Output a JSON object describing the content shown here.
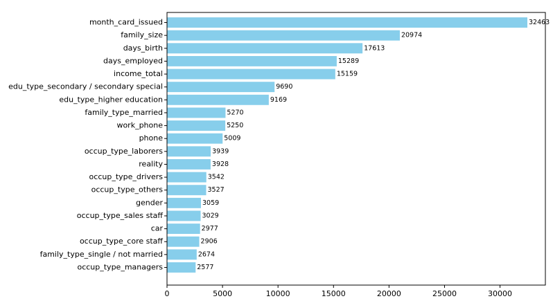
{
  "chart_data": {
    "type": "barh",
    "categories": [
      "month_card_issued",
      "family_size",
      "days_birth",
      "days_employed",
      "income_total",
      "edu_type_secondary / secondary special",
      "edu_type_higher education",
      "family_type_married",
      "work_phone",
      "phone",
      "occup_type_laborers",
      "reality",
      "occup_type_drivers",
      "occup_type_others",
      "gender",
      "occup_type_sales staff",
      "car",
      "occup_type_core staff",
      "family_type_single / not married",
      "occup_type_managers"
    ],
    "values": [
      32463,
      20974,
      17613,
      15289,
      15159,
      9690,
      9169,
      5270,
      5250,
      5009,
      3939,
      3928,
      3542,
      3527,
      3059,
      3029,
      2977,
      2906,
      2674,
      2577
    ],
    "color": "#87ceeb",
    "xlim": [
      0,
      34086
    ],
    "xticks": [
      0,
      5000,
      10000,
      15000,
      20000,
      25000,
      30000
    ]
  }
}
